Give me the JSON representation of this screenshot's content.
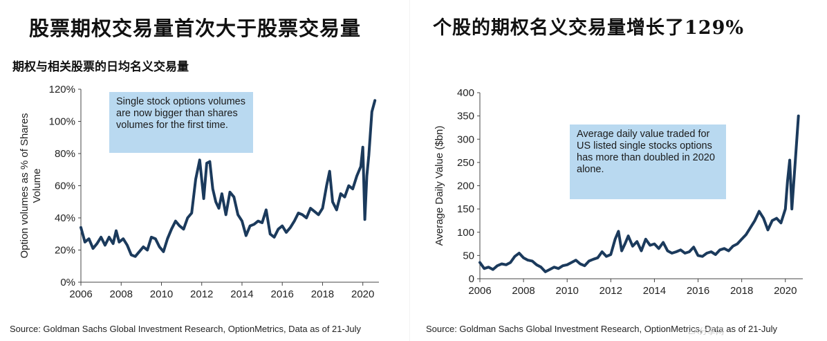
{
  "left": {
    "title": "股票期权交易量首次大于股票交易量",
    "subtitle": "期权与相关股票的日均名义交易量",
    "annotation": "Single stock options volumes are now bigger than shares volumes for the first time.",
    "source": "Source: Goldman Sachs Global Investment Research, OptionMetrics, Data as of 21-July"
  },
  "right": {
    "title": "个股的期权名义交易量增长了129%",
    "annotation": "Average daily value traded for US listed single stocks options has more than doubled in 2020 alone.",
    "source": "Source: Goldman Sachs Global Investment Research, OptionMetrics, Data as of 21-July"
  },
  "watermark": "EA分享网",
  "chart_data": [
    {
      "type": "line",
      "ylabel": "Option volumes as % of  Shares Volume",
      "xlim": [
        2006,
        2020.8
      ],
      "ylim": [
        0,
        120
      ],
      "x_ticks": [
        2006,
        2008,
        2010,
        2012,
        2014,
        2016,
        2018,
        2020
      ],
      "y_ticks": [
        0,
        20,
        40,
        60,
        80,
        100,
        120
      ],
      "y_tick_format": "percent",
      "grid": false,
      "color": "#1b3a5c",
      "series": [
        {
          "x": [
            2006.0,
            2006.2,
            2006.4,
            2006.6,
            2006.8,
            2007.0,
            2007.2,
            2007.4,
            2007.6,
            2007.75,
            2007.9,
            2008.1,
            2008.3,
            2008.5,
            2008.7,
            2008.9,
            2009.1,
            2009.3,
            2009.5,
            2009.7,
            2009.9,
            2010.1,
            2010.3,
            2010.5,
            2010.7,
            2010.9,
            2011.1,
            2011.3,
            2011.5,
            2011.7,
            2011.9,
            2012.1,
            2012.25,
            2012.4,
            2012.55,
            2012.7,
            2012.85,
            2013.0,
            2013.2,
            2013.4,
            2013.6,
            2013.8,
            2014.0,
            2014.2,
            2014.4,
            2014.6,
            2014.8,
            2015.0,
            2015.2,
            2015.4,
            2015.6,
            2015.8,
            2016.0,
            2016.2,
            2016.4,
            2016.6,
            2016.8,
            2017.0,
            2017.2,
            2017.4,
            2017.6,
            2017.8,
            2018.0,
            2018.2,
            2018.35,
            2018.5,
            2018.7,
            2018.9,
            2019.1,
            2019.3,
            2019.5,
            2019.7,
            2019.9,
            2020.0,
            2020.1,
            2020.2,
            2020.3,
            2020.45,
            2020.6
          ],
          "y": [
            34,
            25,
            27,
            21,
            24,
            28,
            23,
            28,
            24,
            32,
            25,
            27,
            23,
            17,
            16,
            19,
            22,
            20,
            28,
            27,
            22,
            19,
            27,
            33,
            38,
            35,
            33,
            40,
            43,
            64,
            76,
            52,
            74,
            75,
            58,
            50,
            46,
            55,
            42,
            56,
            53,
            42,
            38,
            29,
            35,
            36,
            38,
            37,
            45,
            30,
            28,
            33,
            35,
            31,
            34,
            38,
            43,
            42,
            40,
            46,
            44,
            42,
            46,
            60,
            69,
            50,
            45,
            55,
            53,
            60,
            58,
            66,
            72,
            84,
            39,
            66,
            79,
            106,
            113
          ]
        }
      ]
    },
    {
      "type": "line",
      "ylabel": "Average Daily Value ($bn)",
      "xlim": [
        2006,
        2020.8
      ],
      "ylim": [
        0,
        400
      ],
      "x_ticks": [
        2006,
        2008,
        2010,
        2012,
        2014,
        2016,
        2018,
        2020
      ],
      "y_ticks": [
        0,
        50,
        100,
        150,
        200,
        250,
        300,
        350,
        400
      ],
      "grid": false,
      "color": "#1b3a5c",
      "series": [
        {
          "x": [
            2006.0,
            2006.2,
            2006.4,
            2006.6,
            2006.8,
            2007.0,
            2007.2,
            2007.4,
            2007.6,
            2007.8,
            2008.0,
            2008.2,
            2008.4,
            2008.6,
            2008.8,
            2009.0,
            2009.2,
            2009.4,
            2009.6,
            2009.8,
            2010.0,
            2010.2,
            2010.4,
            2010.6,
            2010.8,
            2011.0,
            2011.2,
            2011.4,
            2011.6,
            2011.8,
            2012.0,
            2012.2,
            2012.35,
            2012.5,
            2012.65,
            2012.8,
            2013.0,
            2013.2,
            2013.4,
            2013.6,
            2013.8,
            2014.0,
            2014.2,
            2014.4,
            2014.6,
            2014.8,
            2015.0,
            2015.2,
            2015.4,
            2015.6,
            2015.8,
            2016.0,
            2016.2,
            2016.4,
            2016.6,
            2016.8,
            2017.0,
            2017.2,
            2017.4,
            2017.6,
            2017.8,
            2018.0,
            2018.2,
            2018.4,
            2018.6,
            2018.8,
            2019.0,
            2019.2,
            2019.4,
            2019.6,
            2019.8,
            2020.0,
            2020.1,
            2020.2,
            2020.3,
            2020.45,
            2020.6
          ],
          "y": [
            35,
            22,
            25,
            20,
            28,
            32,
            30,
            35,
            48,
            55,
            45,
            40,
            38,
            30,
            25,
            15,
            20,
            25,
            22,
            28,
            30,
            35,
            40,
            32,
            28,
            38,
            42,
            45,
            58,
            48,
            52,
            85,
            102,
            60,
            75,
            92,
            70,
            80,
            60,
            85,
            72,
            75,
            65,
            78,
            60,
            55,
            58,
            62,
            55,
            58,
            68,
            50,
            48,
            55,
            58,
            52,
            62,
            65,
            60,
            70,
            75,
            85,
            95,
            110,
            125,
            145,
            130,
            105,
            125,
            130,
            120,
            150,
            210,
            255,
            150,
            250,
            350
          ]
        }
      ]
    }
  ]
}
